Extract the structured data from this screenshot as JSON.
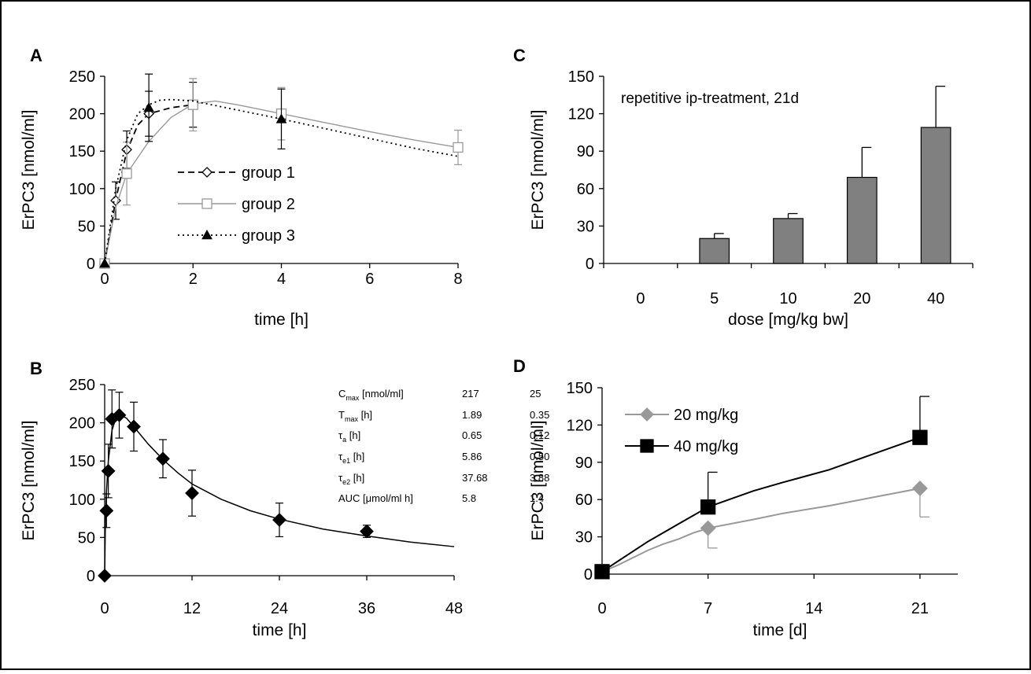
{
  "figure": {
    "frame_color": "#000000"
  },
  "chart_data": [
    {
      "panel": "A",
      "type": "line",
      "xlabel": "time [h]",
      "ylabel": "ErPC3 [nmol/ml]",
      "xticks": [
        "0",
        "2",
        "4",
        "6",
        "8"
      ],
      "yticks": [
        "0",
        "50",
        "100",
        "150",
        "200",
        "250"
      ],
      "xlim": [
        0,
        8
      ],
      "ylim": [
        0,
        250
      ],
      "legend": "center-left",
      "series": [
        {
          "name": "group 1",
          "marker": "diamond-open",
          "line": "dashed",
          "color": "#000000",
          "x": [
            0,
            0.25,
            0.5,
            1,
            2
          ],
          "y": [
            0,
            84,
            152,
            200,
            212
          ],
          "err": [
            0,
            25,
            25,
            30,
            30
          ],
          "fit_x": [
            0,
            0.25,
            0.5,
            0.75,
            1,
            1.5,
            2
          ],
          "fit_y": [
            0,
            85,
            150,
            185,
            200,
            208,
            212
          ]
        },
        {
          "name": "group 2",
          "marker": "square-open",
          "line": "solid",
          "color": "#999999",
          "x": [
            0,
            0.5,
            2,
            4,
            8
          ],
          "y": [
            0,
            120,
            212,
            200,
            155
          ],
          "err": [
            0,
            42,
            35,
            35,
            23
          ],
          "fit_x": [
            0,
            0.25,
            0.5,
            1,
            1.5,
            2,
            2.5,
            3,
            4,
            5,
            6,
            7,
            8
          ],
          "fit_y": [
            0,
            75,
            120,
            163,
            195,
            213,
            217,
            212,
            200,
            188,
            176,
            165,
            155
          ]
        },
        {
          "name": "group 3",
          "marker": "triangle-filled",
          "line": "dotted",
          "color": "#000000",
          "x": [
            0,
            1,
            4
          ],
          "y": [
            0,
            208,
            193
          ],
          "err": [
            0,
            45,
            40
          ],
          "fit_x": [
            0,
            0.25,
            0.5,
            0.75,
            1,
            1.25,
            1.5,
            2,
            3,
            4,
            5,
            6,
            7,
            8
          ],
          "fit_y": [
            0,
            100,
            165,
            200,
            212,
            218,
            219,
            217,
            205,
            193,
            180,
            167,
            154,
            143
          ]
        }
      ]
    },
    {
      "panel": "B",
      "type": "scatter",
      "xlabel": "time [h]",
      "ylabel": "ErPC3 [nmol/ml]",
      "xticks": [
        "0",
        "12",
        "24",
        "36",
        "48"
      ],
      "yticks": [
        "0",
        "50",
        "100",
        "150",
        "200",
        "250"
      ],
      "xlim": [
        0,
        48
      ],
      "ylim": [
        0,
        250
      ],
      "series": [
        {
          "name": "",
          "marker": "diamond-filled",
          "color": "#000000",
          "x": [
            0,
            0.25,
            0.5,
            1,
            2,
            4,
            8,
            12,
            24,
            36
          ],
          "y": [
            0,
            85,
            137,
            205,
            210,
            195,
            153,
            108,
            73,
            58
          ],
          "err": [
            0,
            22,
            35,
            38,
            30,
            32,
            25,
            30,
            22,
            8
          ],
          "fit_x": [
            0,
            0.1,
            0.25,
            0.5,
            1,
            1.5,
            2,
            3,
            4,
            6,
            8,
            10,
            12,
            16,
            20,
            24,
            30,
            36,
            42,
            48
          ],
          "fit_y": [
            0,
            70,
            110,
            150,
            190,
            205,
            211,
            206,
            195,
            172,
            152,
            135,
            120,
            100,
            85,
            74,
            61,
            52,
            44,
            38
          ]
        }
      ],
      "table": [
        {
          "param": "C",
          "sub": "max",
          "unit": " [nmol/ml]",
          "v1": "217",
          "v2": "25"
        },
        {
          "param": "T",
          "sub": "max",
          "unit": " [h]",
          "v1": "1.89",
          "v2": "0.35"
        },
        {
          "param": "τ",
          "sub": "a",
          "unit": " [h]",
          "v1": "0.65",
          "v2": "0.12"
        },
        {
          "param": "τ",
          "sub": "e1",
          "unit": " [h]",
          "v1": "5.86",
          "v2": "0.50"
        },
        {
          "param": "τ",
          "sub": "e2",
          "unit": " [h]",
          "v1": "37.68",
          "v2": "3.88"
        },
        {
          "param": "AUC [μmol/ml  h]",
          "sub": "",
          "unit": "",
          "v1": "5.8",
          "v2": "1.4"
        }
      ]
    },
    {
      "panel": "C",
      "type": "bar",
      "annotation": "repetitive ip-treatment, 21d",
      "xlabel": "dose [mg/kg bw]",
      "ylabel": "ErPC3 [nmol/ml]",
      "categories": [
        "0",
        "5",
        "10",
        "20",
        "40"
      ],
      "values": [
        0,
        20,
        36,
        69,
        109
      ],
      "err": [
        0,
        4,
        4,
        24,
        33
      ],
      "yticks": [
        "0",
        "30",
        "60",
        "90",
        "120",
        "150"
      ],
      "ylim": [
        0,
        150
      ],
      "bar_color": "#808080"
    },
    {
      "panel": "D",
      "type": "line",
      "xlabel": "time [d]",
      "ylabel": "ErPC3 [nmol/ml]",
      "xticks": [
        "0",
        "7",
        "14",
        "21"
      ],
      "yticks": [
        "0",
        "30",
        "60",
        "90",
        "120",
        "150"
      ],
      "xlim": [
        0,
        23.5
      ],
      "ylim": [
        0,
        150
      ],
      "legend": "top-left",
      "series": [
        {
          "name": "20 mg/kg",
          "marker": "diamond-filled",
          "color": "#999999",
          "x": [
            0,
            7,
            21
          ],
          "y": [
            2,
            37,
            69
          ],
          "err": [
            0,
            16,
            23
          ],
          "fit_x": [
            0,
            1,
            2,
            3,
            4,
            5,
            6,
            7,
            10,
            12,
            15,
            18,
            21
          ],
          "fit_y": [
            2,
            7,
            13,
            19,
            24,
            28,
            33,
            37,
            44,
            49,
            55,
            62,
            69
          ]
        },
        {
          "name": "40 mg/kg",
          "marker": "square-filled",
          "color": "#000000",
          "x": [
            0,
            7,
            21
          ],
          "y": [
            2,
            54,
            110
          ],
          "err": [
            0,
            28,
            33
          ],
          "fit_x": [
            0,
            1,
            2,
            3,
            4,
            5,
            6,
            7,
            10,
            12,
            15,
            18,
            21
          ],
          "fit_y": [
            2,
            10,
            18,
            26,
            33,
            40,
            47,
            54,
            67,
            74,
            84,
            97,
            110
          ]
        }
      ]
    }
  ]
}
